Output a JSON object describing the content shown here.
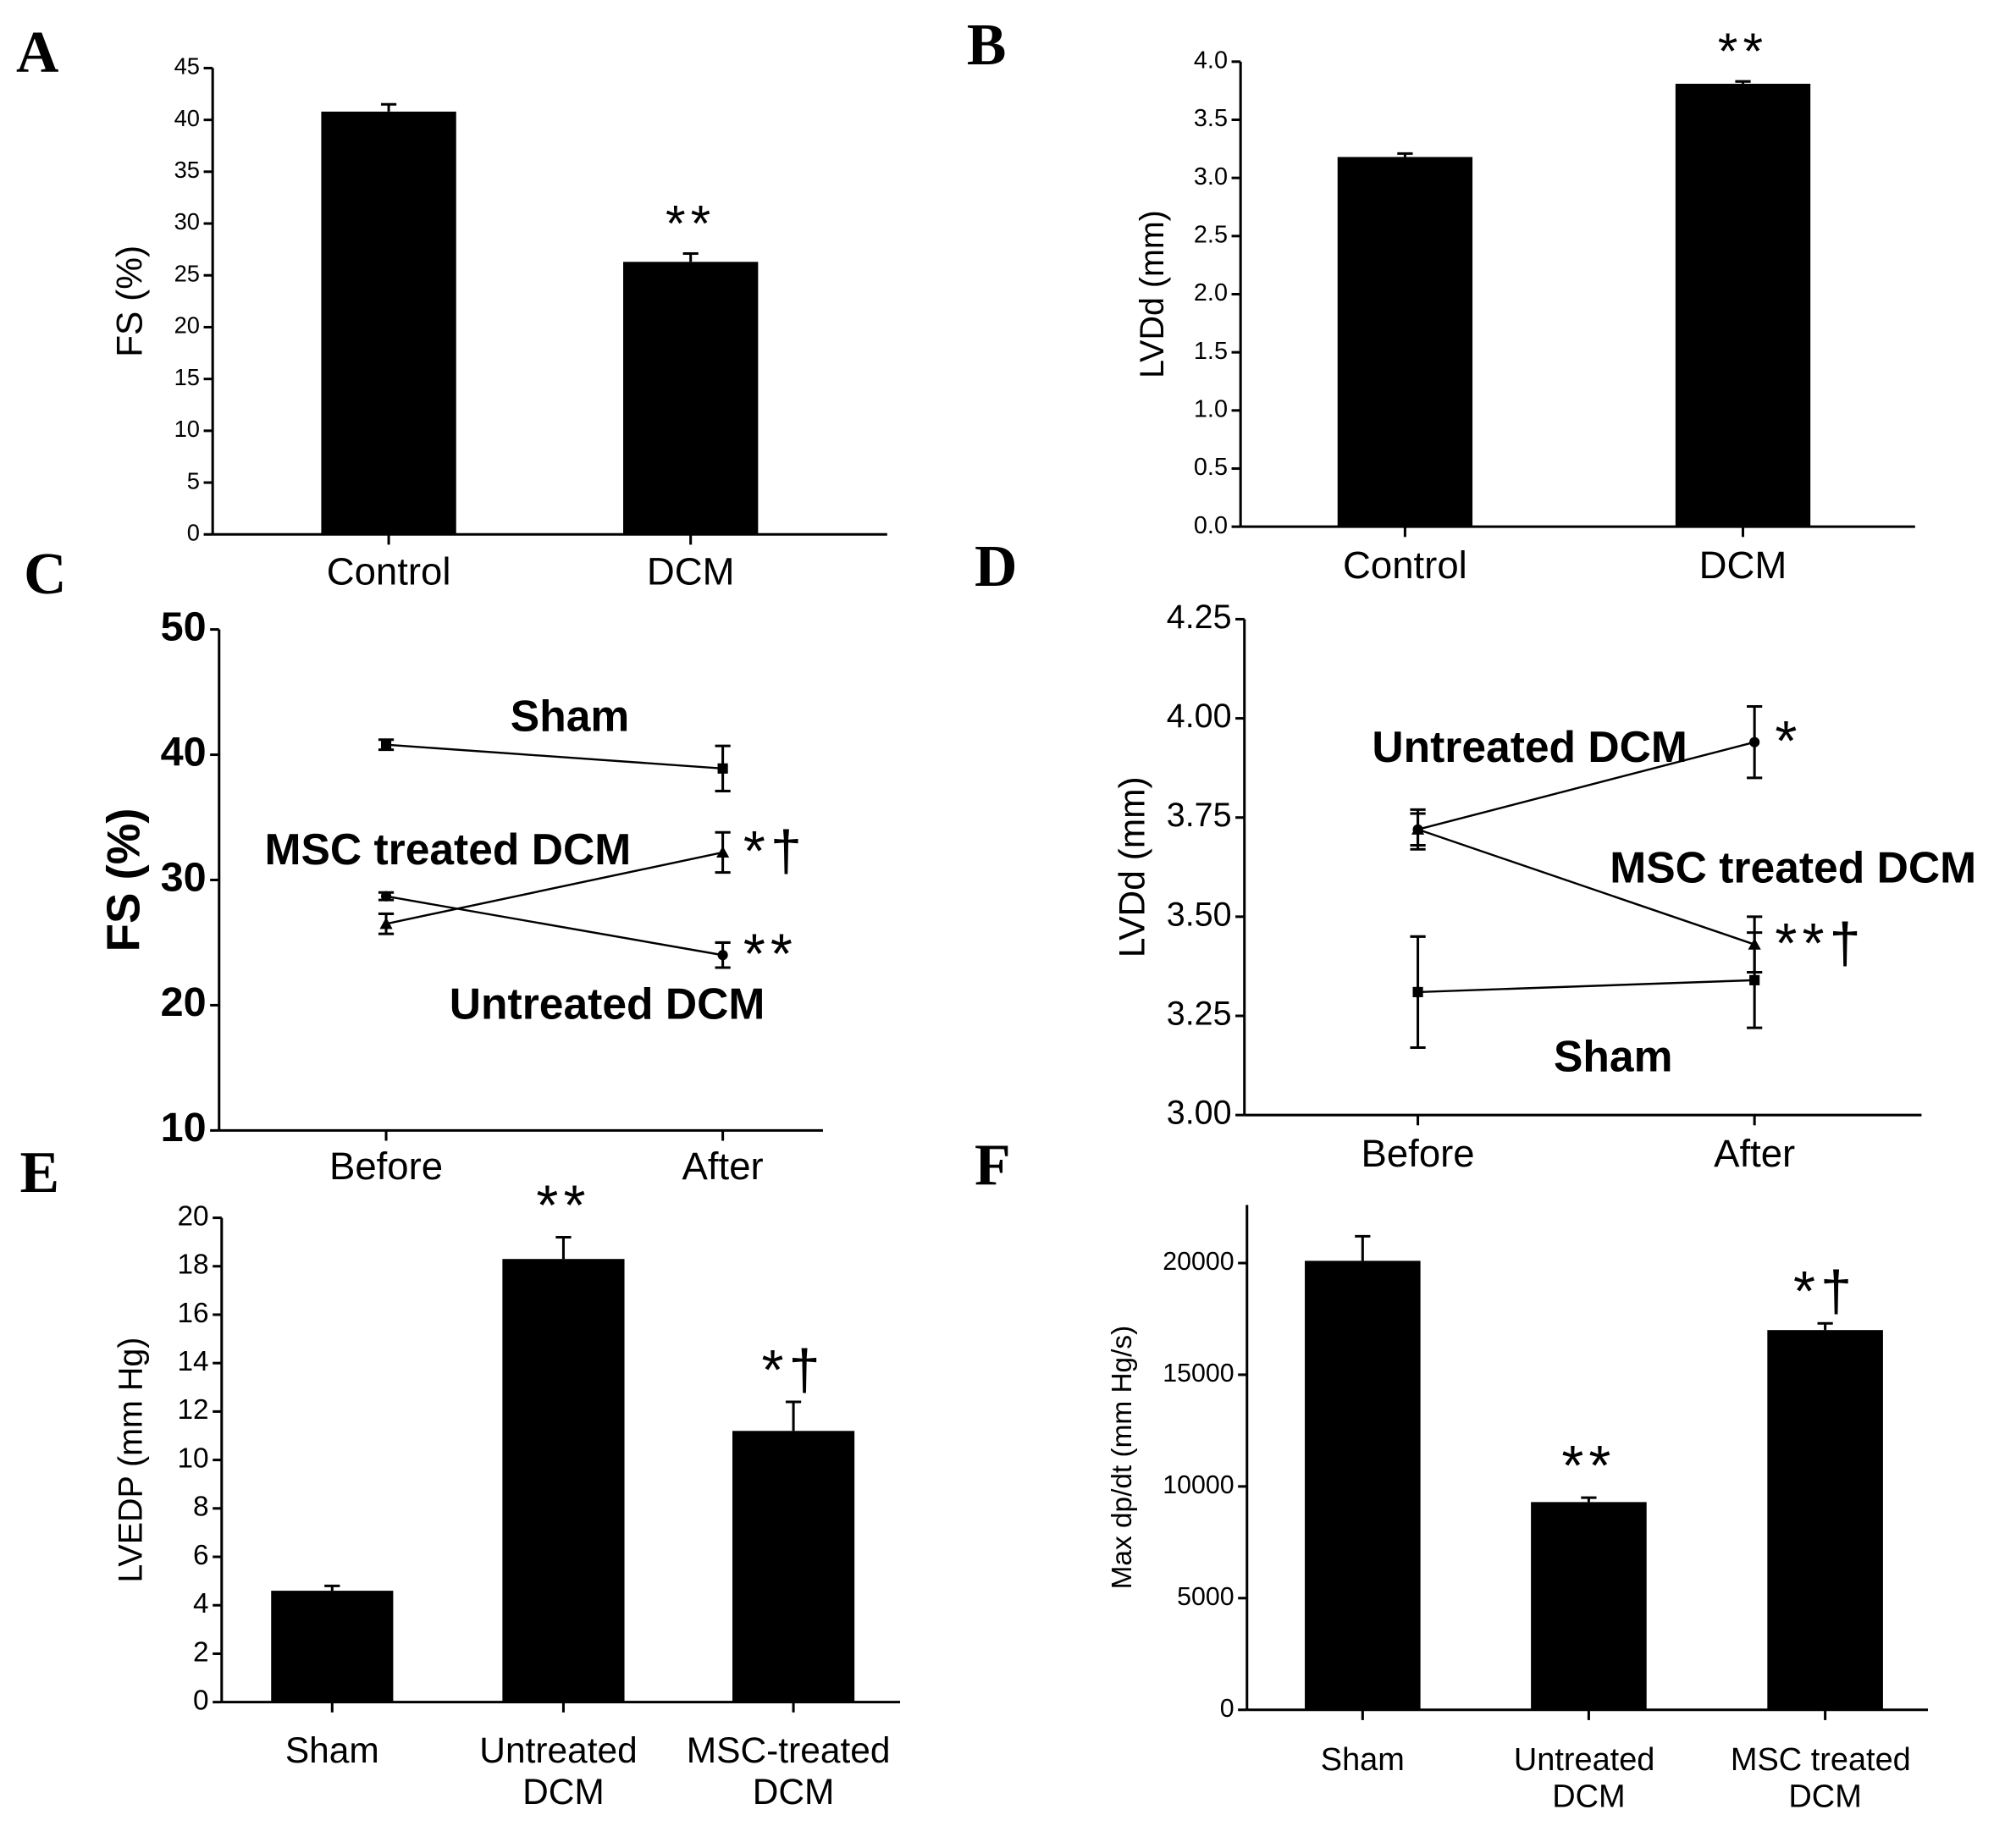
{
  "chart_data": [
    {
      "type": "bar",
      "panel": "A",
      "ylabel": "FS (%)",
      "categories": [
        "Control",
        "DCM"
      ],
      "values": [
        40.8,
        26.3
      ],
      "errors": [
        0.7,
        0.8
      ],
      "annotations": [
        null,
        "**"
      ],
      "color": "#000000",
      "ylim": [
        0,
        45
      ],
      "yticks": [
        0,
        5,
        10,
        15,
        20,
        25,
        30,
        35,
        40,
        45
      ]
    },
    {
      "type": "bar",
      "panel": "B",
      "ylabel": "LVDd (mm)",
      "categories": [
        "Control",
        "DCM"
      ],
      "values": [
        3.18,
        3.81
      ],
      "errors": [
        0.03,
        0.02
      ],
      "annotations": [
        null,
        "**"
      ],
      "color": "#000000",
      "ylim": [
        0,
        4.0
      ],
      "yticks": [
        {
          "value": 0,
          "label": "0.0"
        },
        {
          "value": 0.5,
          "label": "0.5"
        },
        {
          "value": 1,
          "label": "1.0"
        },
        {
          "value": 1.5,
          "label": "1.5"
        },
        {
          "value": 2,
          "label": "2.0"
        },
        {
          "value": 2.5,
          "label": "2.5"
        },
        {
          "value": 3,
          "label": "3.0"
        },
        {
          "value": 3.5,
          "label": "3.5"
        },
        {
          "value": 4,
          "label": "4.0"
        }
      ]
    },
    {
      "type": "line",
      "panel": "C",
      "ylabel": "FS (%)",
      "categories": [
        "Before",
        "After"
      ],
      "series": [
        {
          "name": "Sham",
          "color": "#000000",
          "marker": "square",
          "values": [
            40.8,
            38.9
          ],
          "errors": [
            0.4,
            1.8
          ],
          "annotation": null
        },
        {
          "name": "MSC treated DCM",
          "color": "#000000",
          "marker": "triangle",
          "values": [
            26.5,
            32.2
          ],
          "errors": [
            0.8,
            1.6
          ],
          "annotation": "*†"
        },
        {
          "name": "Untreated DCM",
          "color": "#000000",
          "marker": "circle",
          "values": [
            28.7,
            24.0
          ],
          "errors": [
            0.3,
            1.0
          ],
          "annotation": "**"
        }
      ],
      "ylim": [
        10,
        50
      ],
      "yticks": [
        10,
        20,
        30,
        40,
        50
      ]
    },
    {
      "type": "line",
      "panel": "D",
      "ylabel": "LVDd (mm)",
      "categories": [
        "Before",
        "After"
      ],
      "series": [
        {
          "name": "Untreated DCM",
          "color": "#000000",
          "marker": "circle",
          "values": [
            3.72,
            3.94
          ],
          "errors": [
            0.04,
            0.09
          ],
          "annotation": "*"
        },
        {
          "name": "MSC treated DCM",
          "color": "#000000",
          "marker": "triangle",
          "values": [
            3.72,
            3.43
          ],
          "errors": [
            0.05,
            0.07
          ],
          "annotation": "**†"
        },
        {
          "name": "Sham",
          "color": "#000000",
          "marker": "square",
          "values": [
            3.31,
            3.34
          ],
          "errors": [
            0.14,
            0.12
          ],
          "annotation": null
        }
      ],
      "ylim": [
        3.0,
        4.25
      ],
      "yticks": [
        {
          "value": 3,
          "label": "3.00"
        },
        {
          "value": 3.25,
          "label": "3.25"
        },
        {
          "value": 3.5,
          "label": "3.50"
        },
        {
          "value": 3.75,
          "label": "3.75"
        },
        {
          "value": 4,
          "label": "4.00"
        },
        {
          "value": 4.25,
          "label": "4.25"
        }
      ]
    },
    {
      "type": "bar",
      "panel": "E",
      "ylabel": "LVEDP (mm Hg)",
      "categories": [
        "Sham",
        "Untreated DCM",
        "MSC-treated DCM"
      ],
      "values": [
        4.6,
        18.3,
        11.2
      ],
      "errors": [
        0.2,
        0.9,
        1.2
      ],
      "annotations": [
        null,
        "**",
        "*†"
      ],
      "color": "#000000",
      "ylim": [
        0,
        20
      ],
      "yticks": [
        0,
        2,
        4,
        6,
        8,
        10,
        12,
        14,
        16,
        18,
        20
      ]
    },
    {
      "type": "bar",
      "panel": "F",
      "ylabel": "Max dp/dt (mm Hg/s)",
      "categories": [
        "Sham",
        "Untreated DCM",
        "MSC treated DCM"
      ],
      "values": [
        20100,
        9300,
        17000
      ],
      "errors": [
        1100,
        200,
        300
      ],
      "annotations": [
        null,
        "**",
        "*†"
      ],
      "color": "#000000",
      "ylim": [
        0,
        22600
      ],
      "yticks": [
        0,
        5000,
        10000,
        15000,
        20000
      ]
    }
  ]
}
